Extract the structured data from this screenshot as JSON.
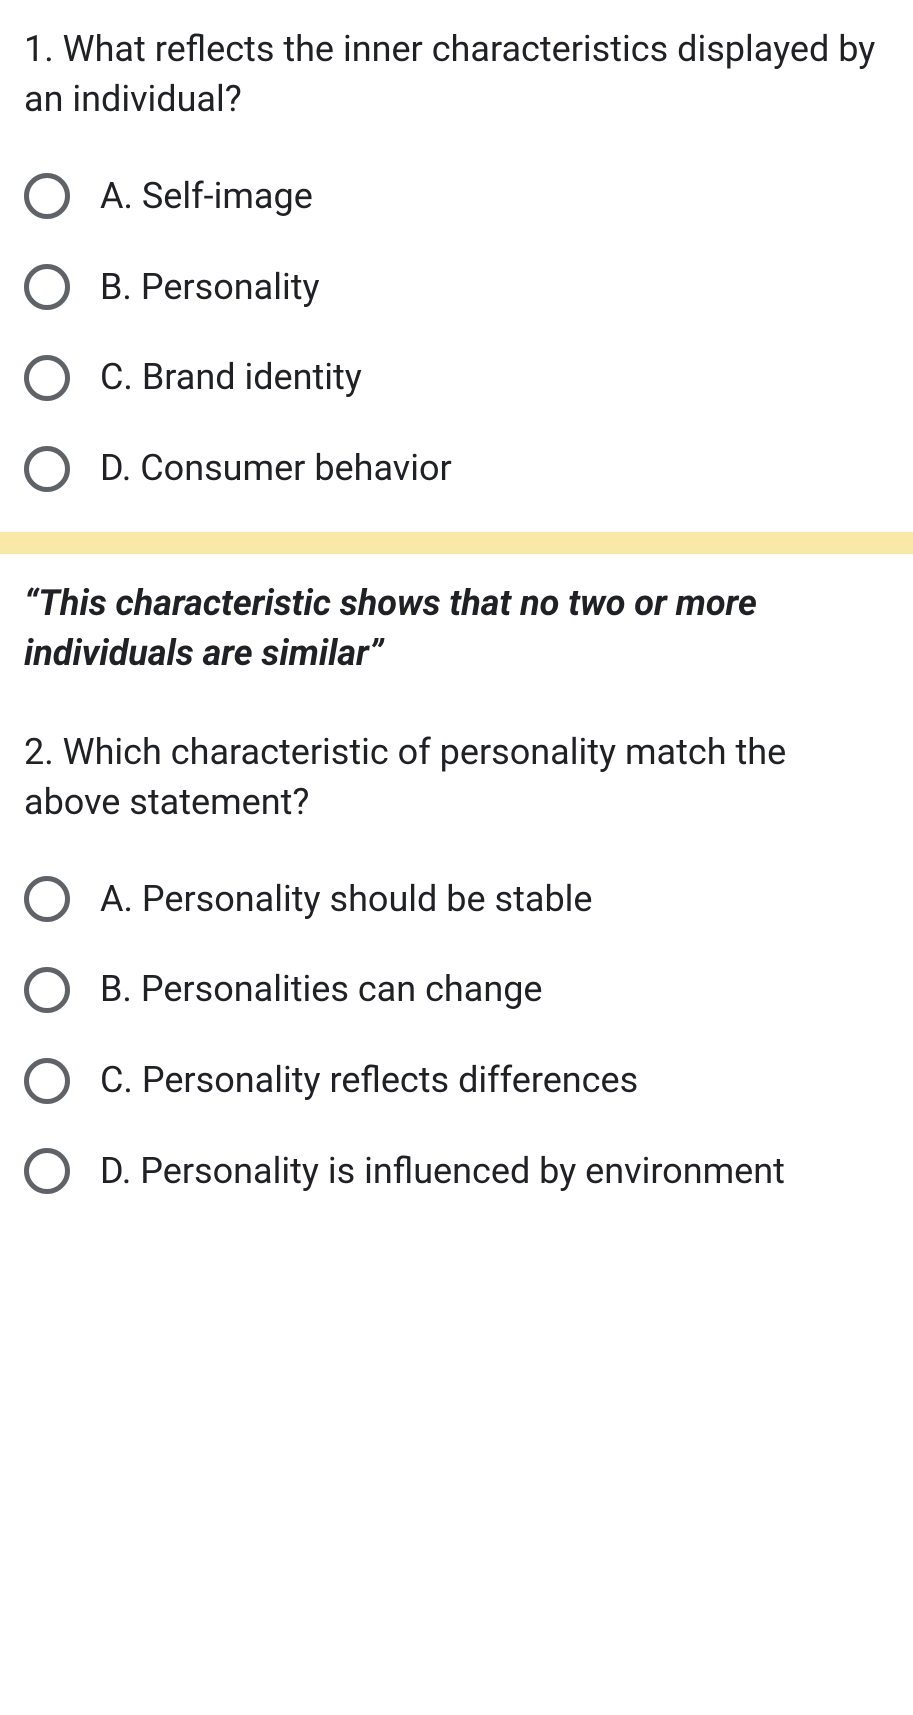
{
  "questions": [
    {
      "text": "1. What reflects the inner characteristics displayed by an individual?",
      "options": [
        "A. Self-image",
        "B. Personality",
        "C. Brand identity",
        "D. Consumer behavior"
      ]
    },
    {
      "quote": "“This characteristic shows that no two or more individuals are similar”",
      "text": "2. Which characteristic of personality match the above statement?",
      "options": [
        "A. Personality should be stable",
        "B. Personalities can change",
        "C. Personality reflects differences",
        "D. Personality is influenced by environment"
      ]
    }
  ],
  "colors": {
    "text": "#202124",
    "radio_border": "#5f6368",
    "divider": "#f8e9a9",
    "background": "#ffffff"
  }
}
